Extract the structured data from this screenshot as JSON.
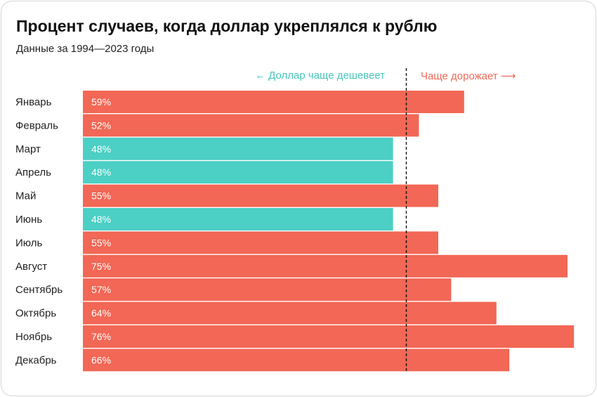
{
  "header": {
    "title": "Процент случаев, когда доллар укреплялся к рублю",
    "subtitle": "Данные за 1994—2023 годы"
  },
  "annotations": {
    "left": "← Доллар чаще дешевеет",
    "right": "Чаще дорожает ⟶"
  },
  "colors": {
    "up": "#f26755",
    "down": "#4ccfc4",
    "left_text": "#44c7bb",
    "right_text": "#f06a5a"
  },
  "chart_data": {
    "type": "bar",
    "orientation": "horizontal",
    "categories": [
      "Январь",
      "Февраль",
      "Март",
      "Апрель",
      "Май",
      "Июнь",
      "Июль",
      "Август",
      "Сентябрь",
      "Октябрь",
      "Ноябрь",
      "Декабрь"
    ],
    "values": [
      59,
      52,
      48,
      48,
      55,
      48,
      55,
      75,
      57,
      64,
      76,
      66
    ],
    "value_labels": [
      "59%",
      "52%",
      "48%",
      "48%",
      "55%",
      "48%",
      "55%",
      "75%",
      "57%",
      "64%",
      "76%",
      "66%"
    ],
    "reference_line": 50,
    "xlim": [
      0,
      76
    ],
    "grid": false,
    "legend": "none"
  }
}
